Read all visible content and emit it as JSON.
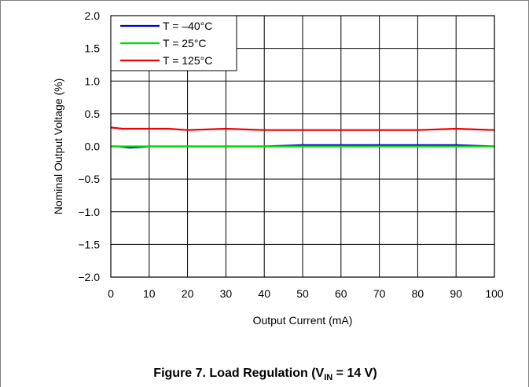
{
  "chart_data": {
    "type": "line",
    "xlabel": "Output Current (mA)",
    "ylabel": "Nominal Output Voltage (%)",
    "xlim": [
      0,
      100
    ],
    "ylim": [
      -2.0,
      2.0
    ],
    "xticks": [
      "0",
      "10",
      "20",
      "30",
      "40",
      "50",
      "60",
      "70",
      "80",
      "90",
      "100"
    ],
    "yticks": [
      "2.0",
      "1.5",
      "1.0",
      "0.5",
      "0.0",
      "−0.5",
      "−1.0",
      "−1.5",
      "−2.0"
    ],
    "grid": true,
    "legend_position": "top-left",
    "series": [
      {
        "name": "T = –40°C",
        "color": "#0000cc",
        "x": [
          0,
          2,
          5,
          8,
          10,
          15,
          20,
          30,
          40,
          50,
          60,
          70,
          80,
          90,
          100
        ],
        "y": [
          0.0,
          0.0,
          -0.02,
          -0.01,
          0.0,
          0.0,
          0.0,
          0.0,
          0.0,
          0.02,
          0.02,
          0.02,
          0.02,
          0.02,
          0.0
        ]
      },
      {
        "name": "T = 25°C",
        "color": "#00dd00",
        "x": [
          0,
          10,
          20,
          30,
          40,
          50,
          60,
          70,
          80,
          90,
          100
        ],
        "y": [
          0.0,
          0.0,
          0.0,
          0.0,
          0.0,
          0.0,
          0.0,
          0.0,
          0.0,
          0.0,
          0.0
        ]
      },
      {
        "name": "T = 125°C",
        "color": "#ee0000",
        "x": [
          0,
          3,
          10,
          15,
          20,
          25,
          30,
          35,
          40,
          50,
          60,
          70,
          80,
          90,
          95,
          100
        ],
        "y": [
          0.29,
          0.27,
          0.27,
          0.27,
          0.25,
          0.26,
          0.27,
          0.26,
          0.25,
          0.25,
          0.25,
          0.25,
          0.25,
          0.27,
          0.26,
          0.25
        ]
      }
    ]
  },
  "caption": {
    "prefix": "Figure 7. Load Regulation (V",
    "sub": "IN",
    "suffix": " = 14 V)"
  }
}
